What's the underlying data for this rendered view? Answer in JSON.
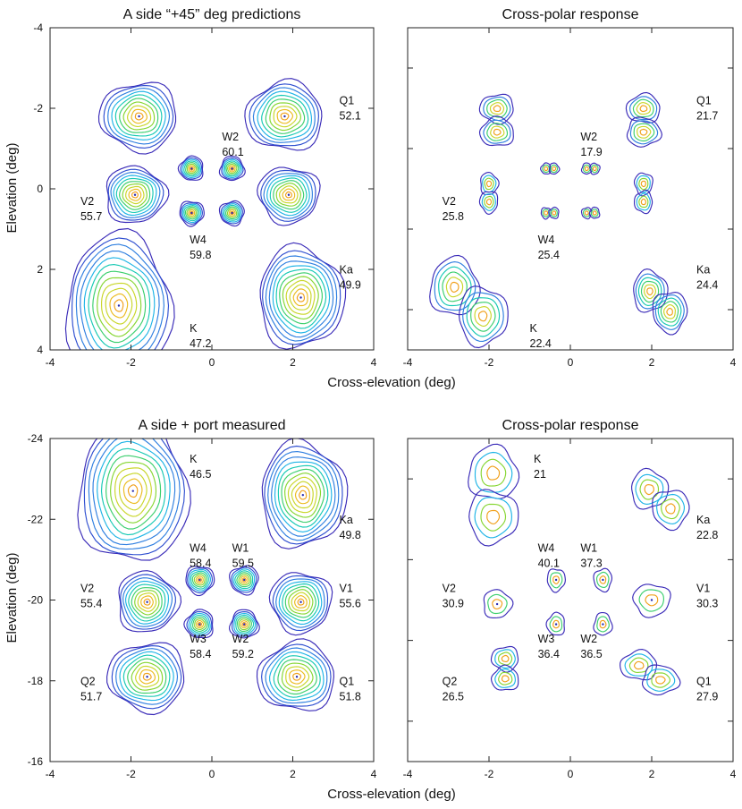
{
  "figure": {
    "xlabel": "Cross-elevation (deg)",
    "ylabel": "Elevation (deg)"
  },
  "chart_data": [
    {
      "type": "contour",
      "title": "A side “+45” deg predictions",
      "xlabel": "Cross-elevation (deg)",
      "ylabel": "Elevation (deg)",
      "xlim": [
        -4,
        4
      ],
      "ylim": [
        -4,
        4
      ],
      "xticks": [
        "-4",
        "-2",
        "0",
        "2",
        "4"
      ],
      "yticks": [
        "-4",
        "-2",
        "0",
        "2",
        "4"
      ],
      "beams": [
        {
          "name": "K",
          "value": "47.2",
          "cx": -2.3,
          "cy": 2.9,
          "rx": 1.3,
          "ry": 1.75,
          "levels": 12,
          "label_x": -0.55,
          "label_y": 3.55
        },
        {
          "name": "Ka",
          "value": "49.9",
          "cx": 2.2,
          "cy": 2.7,
          "rx": 1.05,
          "ry": 1.25,
          "levels": 12,
          "label_x": 3.15,
          "label_y": 2.1
        },
        {
          "name": "W4",
          "value": "59.8",
          "cx": -0.5,
          "cy": 0.6,
          "rx": 0.3,
          "ry": 0.3,
          "levels": 8,
          "label_x": -0.55,
          "label_y": 1.35
        },
        {
          "name": "",
          "value": "",
          "cx": 0.5,
          "cy": 0.6,
          "rx": 0.3,
          "ry": 0.3,
          "levels": 8
        },
        {
          "name": "",
          "value": "",
          "cx": -0.5,
          "cy": -0.5,
          "rx": 0.3,
          "ry": 0.3,
          "levels": 8
        },
        {
          "name": "W2",
          "value": "60.1",
          "cx": 0.5,
          "cy": -0.5,
          "rx": 0.3,
          "ry": 0.3,
          "levels": 8,
          "label_x": 0.25,
          "label_y": -1.2
        },
        {
          "name": "V2",
          "value": "55.7",
          "cx": -1.9,
          "cy": 0.15,
          "rx": 0.75,
          "ry": 0.7,
          "levels": 10,
          "label_x": -3.25,
          "label_y": 0.4
        },
        {
          "name": "",
          "value": "",
          "cx": 1.9,
          "cy": 0.15,
          "rx": 0.75,
          "ry": 0.7,
          "levels": 10
        },
        {
          "name": "",
          "value": "",
          "cx": -1.8,
          "cy": -1.8,
          "rx": 0.95,
          "ry": 0.85,
          "levels": 10
        },
        {
          "name": "Q1",
          "value": "52.1",
          "cx": 1.8,
          "cy": -1.8,
          "rx": 0.95,
          "ry": 0.85,
          "levels": 10,
          "label_x": 3.15,
          "label_y": -2.1
        }
      ]
    },
    {
      "type": "contour",
      "title": "Cross-polar response",
      "xlabel": "Cross-elevation (deg)",
      "ylabel": "",
      "xlim": [
        -4,
        4
      ],
      "ylim": [
        -4,
        4
      ],
      "xticks": [
        "-4",
        "-2",
        "0",
        "2",
        "4"
      ],
      "beams": [
        {
          "name": "K",
          "value": "22.4",
          "cx": -2.5,
          "cy": 2.8,
          "rx": 1.0,
          "ry": 1.2,
          "levels": 6,
          "split": "diag",
          "label_x": -1.0,
          "label_y": 3.55
        },
        {
          "name": "Ka",
          "value": "24.4",
          "cx": 2.2,
          "cy": 2.8,
          "rx": 0.7,
          "ry": 0.85,
          "levels": 6,
          "split": "diag",
          "label_x": 3.1,
          "label_y": 2.1
        },
        {
          "name": "W4",
          "value": "25.4",
          "cx": -0.5,
          "cy": 0.6,
          "rx": 0.22,
          "ry": 0.25,
          "levels": 3,
          "split": "v",
          "label_x": -0.8,
          "label_y": 1.35
        },
        {
          "name": "",
          "value": "",
          "cx": 0.5,
          "cy": 0.6,
          "rx": 0.22,
          "ry": 0.25,
          "levels": 3,
          "split": "v"
        },
        {
          "name": "",
          "value": "",
          "cx": -0.5,
          "cy": -0.5,
          "rx": 0.22,
          "ry": 0.25,
          "levels": 3,
          "split": "v"
        },
        {
          "name": "W2",
          "value": "17.9",
          "cx": 0.5,
          "cy": -0.5,
          "rx": 0.22,
          "ry": 0.25,
          "levels": 3,
          "split": "v",
          "label_x": 0.25,
          "label_y": -1.2
        },
        {
          "name": "V2",
          "value": "25.8",
          "cx": -2.0,
          "cy": 0.1,
          "rx": 0.4,
          "ry": 0.5,
          "levels": 4,
          "split": "h",
          "label_x": -3.15,
          "label_y": 0.4
        },
        {
          "name": "",
          "value": "",
          "cx": 1.8,
          "cy": 0.1,
          "rx": 0.4,
          "ry": 0.5,
          "levels": 4,
          "split": "h"
        },
        {
          "name": "",
          "value": "",
          "cx": -1.8,
          "cy": -1.7,
          "rx": 0.75,
          "ry": 0.65,
          "levels": 5,
          "split": "h"
        },
        {
          "name": "Q1",
          "value": "21.7",
          "cx": 1.8,
          "cy": -1.7,
          "rx": 0.75,
          "ry": 0.65,
          "levels": 5,
          "split": "h",
          "label_x": 3.1,
          "label_y": -2.1
        }
      ]
    },
    {
      "type": "contour",
      "title": "A side + port measured",
      "xlabel": "Cross-elevation (deg)",
      "ylabel": "Elevation (deg)",
      "xlim": [
        -4,
        4
      ],
      "ylim": [
        -24,
        -16
      ],
      "xticks": [
        "-4",
        "-2",
        "0",
        "2",
        "4"
      ],
      "yticks": [
        "-24",
        "-22",
        "-20",
        "-18",
        "-16"
      ],
      "beams": [
        {
          "name": "K",
          "value": "46.5",
          "cx": -1.95,
          "cy": -22.7,
          "rx": 1.35,
          "ry": 1.8,
          "levels": 12,
          "label_x": -0.55,
          "label_y": -23.4
        },
        {
          "name": "Ka",
          "value": "49.8",
          "cx": 2.25,
          "cy": -22.6,
          "rx": 1.05,
          "ry": 1.3,
          "levels": 12,
          "label_x": 3.15,
          "label_y": -21.9
        },
        {
          "name": "W4",
          "value": "58.4",
          "cx": -0.3,
          "cy": -20.5,
          "rx": 0.35,
          "ry": 0.35,
          "levels": 8,
          "label_x": -0.55,
          "label_y": -21.2
        },
        {
          "name": "W1",
          "value": "59.5",
          "cx": 0.8,
          "cy": -20.5,
          "rx": 0.35,
          "ry": 0.35,
          "levels": 8,
          "label_x": 0.5,
          "label_y": -21.2
        },
        {
          "name": "W3",
          "value": "58.4",
          "cx": -0.3,
          "cy": -19.4,
          "rx": 0.35,
          "ry": 0.35,
          "levels": 8,
          "label_x": -0.55,
          "label_y": -18.95
        },
        {
          "name": "W2",
          "value": "59.2",
          "cx": 0.8,
          "cy": -19.4,
          "rx": 0.35,
          "ry": 0.35,
          "levels": 8,
          "label_x": 0.5,
          "label_y": -18.95
        },
        {
          "name": "V2",
          "value": "55.4",
          "cx": -1.6,
          "cy": -19.95,
          "rx": 0.75,
          "ry": 0.75,
          "levels": 10,
          "label_x": -3.25,
          "label_y": -20.2
        },
        {
          "name": "V1",
          "value": "55.6",
          "cx": 2.2,
          "cy": -19.95,
          "rx": 0.75,
          "ry": 0.75,
          "levels": 10,
          "label_x": 3.15,
          "label_y": -20.2
        },
        {
          "name": "Q2",
          "value": "51.7",
          "cx": -1.6,
          "cy": -18.1,
          "rx": 0.95,
          "ry": 0.85,
          "levels": 10,
          "label_x": -3.25,
          "label_y": -17.9
        },
        {
          "name": "Q1",
          "value": "51.8",
          "cx": 2.1,
          "cy": -18.1,
          "rx": 0.95,
          "ry": 0.85,
          "levels": 10,
          "label_x": 3.15,
          "label_y": -17.9
        }
      ]
    },
    {
      "type": "contour",
      "title": "Cross-polar response",
      "xlabel": "Cross-elevation (deg)",
      "ylabel": "",
      "xlim": [
        -4,
        4
      ],
      "ylim": [
        -24,
        -16
      ],
      "xticks": [
        "-4",
        "-2",
        "0",
        "2",
        "4"
      ],
      "beams": [
        {
          "name": "K",
          "value": "21",
          "cx": -1.9,
          "cy": -22.6,
          "rx": 1.1,
          "ry": 1.2,
          "levels": 4,
          "split": "h",
          "label_x": -0.9,
          "label_y": -23.4
        },
        {
          "name": "Ka",
          "value": "22.8",
          "cx": 2.2,
          "cy": -22.5,
          "rx": 0.75,
          "ry": 0.8,
          "levels": 4,
          "split": "diag",
          "label_x": 3.1,
          "label_y": -21.9
        },
        {
          "name": "W4",
          "value": "40.1",
          "cx": -0.35,
          "cy": -20.5,
          "rx": 0.22,
          "ry": 0.28,
          "levels": 3,
          "label_x": -0.8,
          "label_y": -21.2
        },
        {
          "name": "W1",
          "value": "37.3",
          "cx": 0.8,
          "cy": -20.5,
          "rx": 0.22,
          "ry": 0.28,
          "levels": 3,
          "label_x": 0.25,
          "label_y": -21.2
        },
        {
          "name": "W3",
          "value": "36.4",
          "cx": -0.35,
          "cy": -19.4,
          "rx": 0.22,
          "ry": 0.28,
          "levels": 3,
          "label_x": -0.8,
          "label_y": -18.95
        },
        {
          "name": "W2",
          "value": "36.5",
          "cx": 0.8,
          "cy": -19.4,
          "rx": 0.22,
          "ry": 0.28,
          "levels": 3,
          "label_x": 0.25,
          "label_y": -18.95
        },
        {
          "name": "V2",
          "value": "30.9",
          "cx": -1.8,
          "cy": -19.9,
          "rx": 0.35,
          "ry": 0.35,
          "levels": 3,
          "label_x": -3.15,
          "label_y": -20.2
        },
        {
          "name": "V1",
          "value": "30.3",
          "cx": 2.0,
          "cy": -20.0,
          "rx": 0.45,
          "ry": 0.4,
          "levels": 3,
          "label_x": 3.1,
          "label_y": -20.2
        },
        {
          "name": "Q2",
          "value": "26.5",
          "cx": -1.6,
          "cy": -18.3,
          "rx": 0.6,
          "ry": 0.55,
          "levels": 4,
          "split": "h",
          "label_x": -3.15,
          "label_y": -17.9
        },
        {
          "name": "Q1",
          "value": "27.9",
          "cx": 1.95,
          "cy": -18.2,
          "rx": 0.75,
          "ry": 0.6,
          "levels": 4,
          "split": "diag",
          "label_x": 3.1,
          "label_y": -17.9
        }
      ]
    }
  ]
}
